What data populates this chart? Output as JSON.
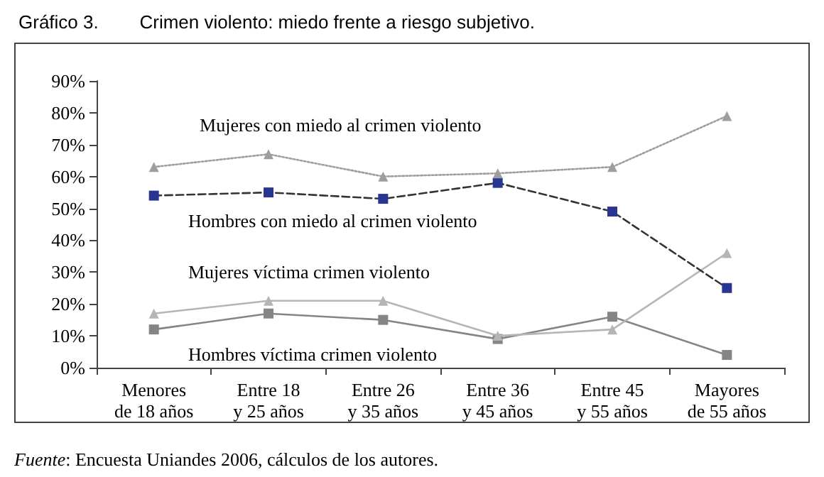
{
  "chart_data": {
    "type": "line",
    "title": "Gráfico 3.        Crimen violento: miedo frente a riesgo subjetivo.",
    "categories": [
      "Menores\nde 18 años",
      "Entre 18\ny 25 años",
      "Entre 26\ny 35 años",
      "Entre 36\ny 45 años",
      "Entre 45\ny 55 años",
      "Mayores\nde 55 años"
    ],
    "series": [
      {
        "name": "Mujeres con miedo al crimen violento",
        "color": "#9e9e9e",
        "marker": "triangle",
        "line_style": "dotted",
        "values": [
          63,
          67,
          60,
          61,
          63,
          79
        ]
      },
      {
        "name": "Hombres con miedo al crimen violento",
        "color": "#283593",
        "marker": "square",
        "line_style": "dashed",
        "values": [
          54,
          55,
          53,
          58,
          49,
          25
        ]
      },
      {
        "name": "Mujeres víctima crimen violento",
        "color": "#b5b5b5",
        "marker": "triangle",
        "line_style": "solid",
        "values": [
          17,
          21,
          21,
          10,
          12,
          36
        ]
      },
      {
        "name": "Hombres víctima crimen violento",
        "color": "#858585",
        "marker": "square",
        "line_style": "solid",
        "values": [
          12,
          17,
          15,
          9,
          16,
          4
        ]
      }
    ],
    "ylim": [
      0,
      90
    ],
    "yticks": [
      {
        "value": 0,
        "label": "0%"
      },
      {
        "value": 10,
        "label": "10%"
      },
      {
        "value": 20,
        "label": "20%"
      },
      {
        "value": 30,
        "label": "30%"
      },
      {
        "value": 40,
        "label": "40%"
      },
      {
        "value": 50,
        "label": "50%"
      },
      {
        "value": 60,
        "label": "60%"
      },
      {
        "value": 70,
        "label": "70%"
      },
      {
        "value": 80,
        "label": "80%"
      },
      {
        "value": 90,
        "label": "90%"
      }
    ],
    "grid": false,
    "legend": false,
    "annotations": [
      "Fuente: Encuesta Uniandes 2006, cálculos de los autores."
    ]
  }
}
